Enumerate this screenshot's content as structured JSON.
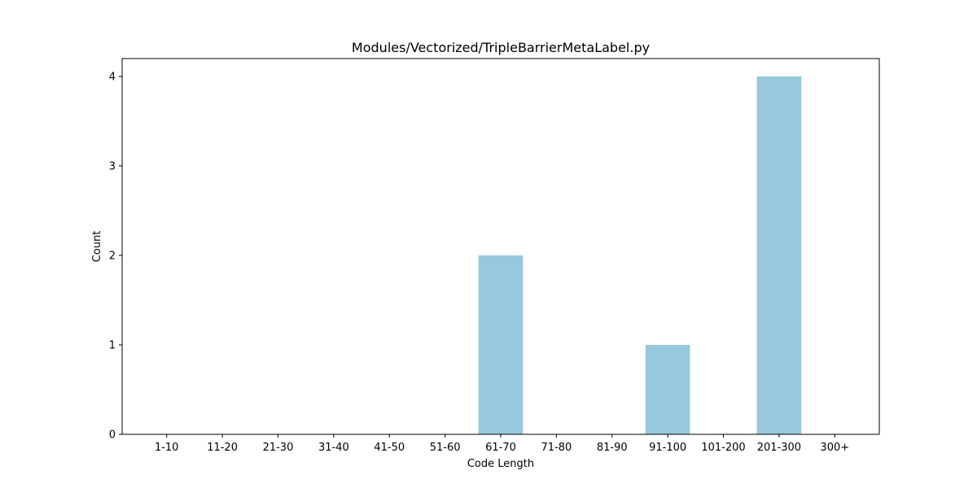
{
  "chart_data": {
    "type": "bar",
    "title": "Modules/Vectorized/TripleBarrierMetaLabel.py",
    "xlabel": "Code Length",
    "ylabel": "Count",
    "categories": [
      "1-10",
      "11-20",
      "21-30",
      "31-40",
      "41-50",
      "51-60",
      "61-70",
      "71-80",
      "81-90",
      "91-100",
      "101-200",
      "201-300",
      "300+"
    ],
    "values": [
      0,
      0,
      0,
      0,
      0,
      0,
      2,
      0,
      0,
      1,
      0,
      4,
      0
    ],
    "ylim": [
      0,
      4.2
    ],
    "yticks": [
      0,
      1,
      2,
      3,
      4
    ],
    "bar_color": "#96c9dc",
    "grid": false,
    "legend": "none"
  }
}
